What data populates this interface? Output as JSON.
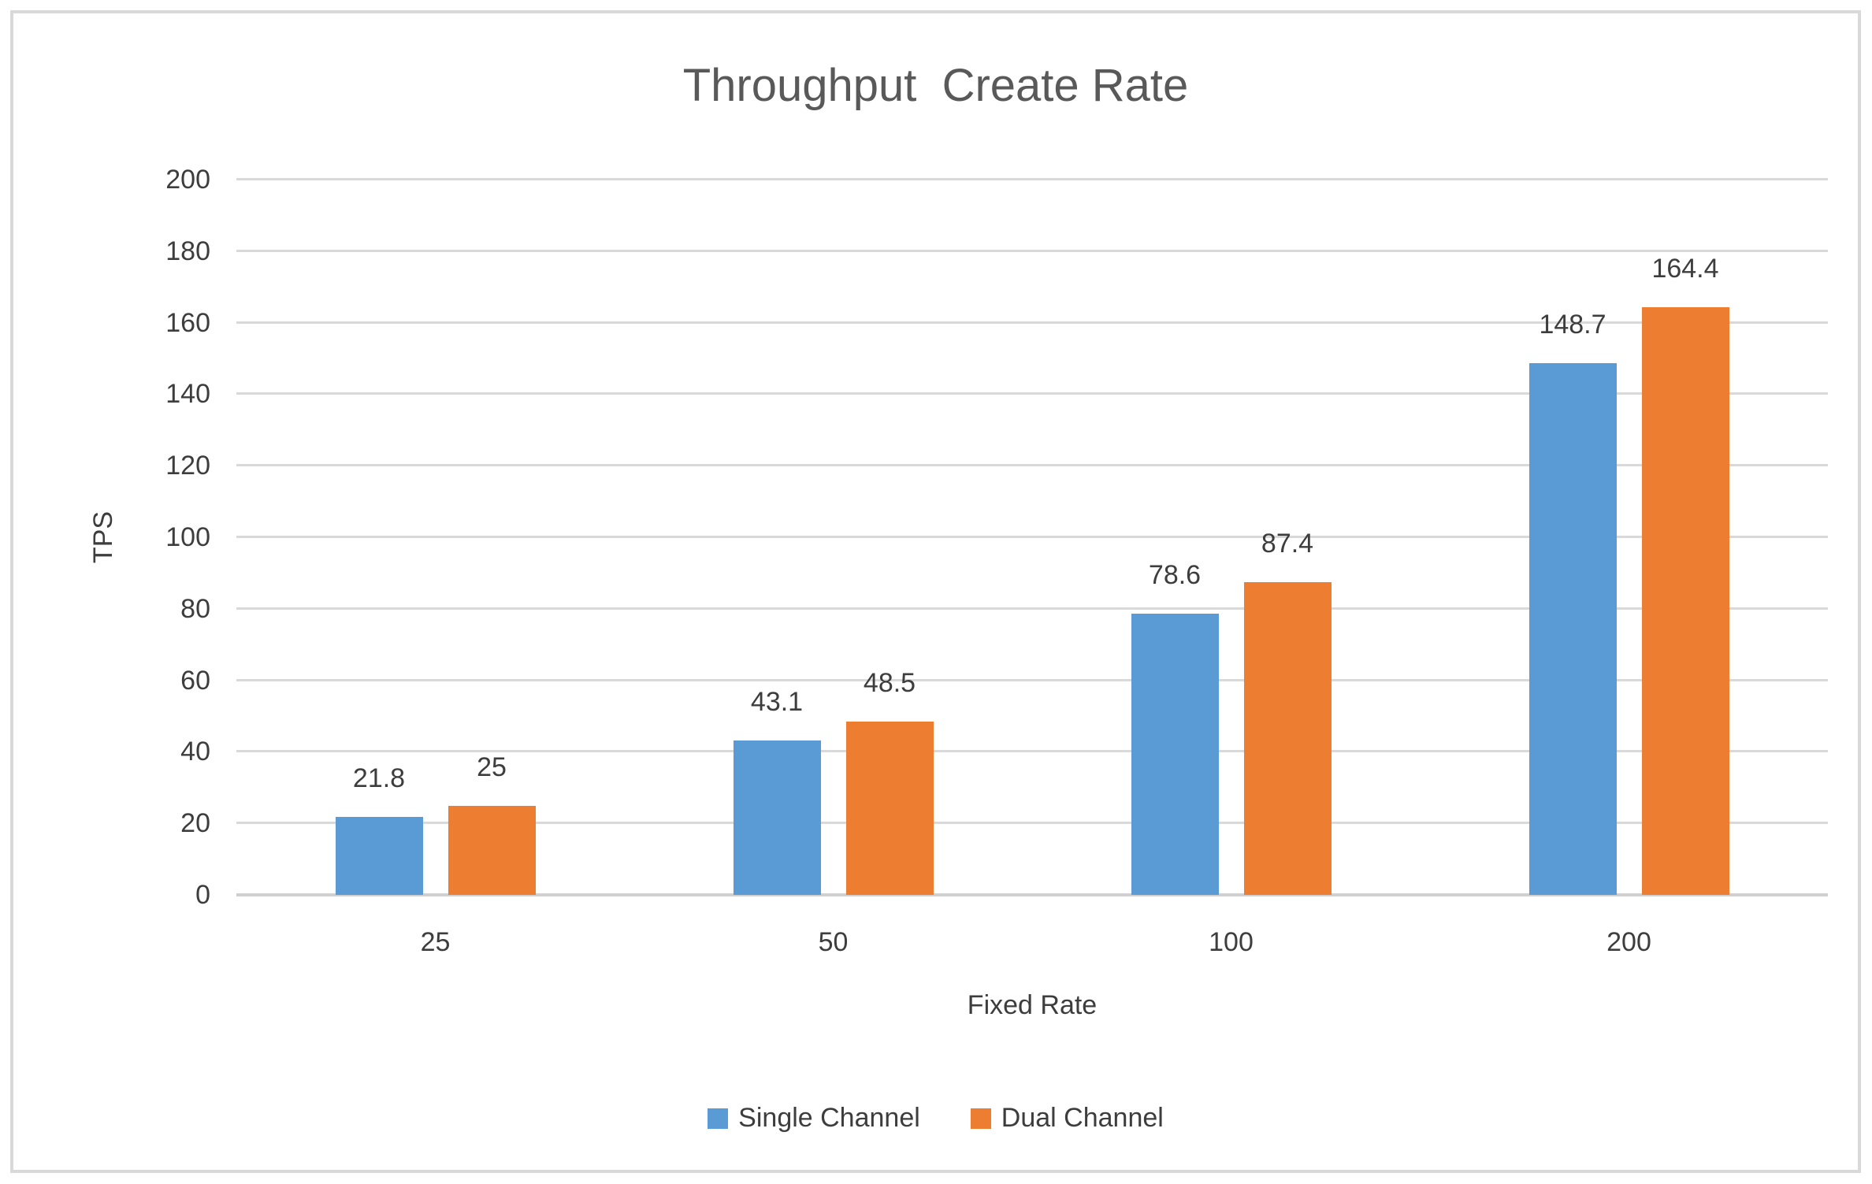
{
  "chart_data": {
    "type": "bar",
    "title": "Throughput  Create Rate",
    "xlabel": "Fixed Rate",
    "ylabel": "TPS",
    "categories": [
      "25",
      "50",
      "100",
      "200"
    ],
    "series": [
      {
        "name": "Single Channel",
        "color": "#5B9BD5",
        "values": [
          21.8,
          43.1,
          78.6,
          148.7
        ],
        "data_labels": [
          "21.8",
          "43.1",
          "78.6",
          "148.7"
        ]
      },
      {
        "name": "Dual Channel",
        "color": "#ED7D31",
        "values": [
          25,
          48.5,
          87.4,
          164.4
        ],
        "data_labels": [
          "25",
          "48.5",
          "87.4",
          "164.4"
        ]
      }
    ],
    "ylim": [
      0,
      200
    ],
    "ytick_step": 20,
    "yticks": [
      "0",
      "20",
      "40",
      "60",
      "80",
      "100",
      "120",
      "140",
      "160",
      "180",
      "200"
    ],
    "grid": true,
    "legend_position": "bottom",
    "gridline_color": "#D9D9D9",
    "text_color": "#3D3D3D",
    "title_color": "#595959"
  }
}
